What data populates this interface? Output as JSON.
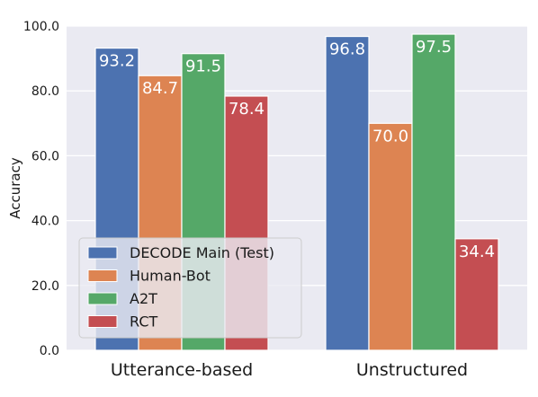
{
  "chart_data": {
    "type": "bar",
    "categories": [
      "Utterance-based",
      "Unstructured"
    ],
    "series": [
      {
        "name": "DECODE Main (Test)",
        "values": [
          93.2,
          96.8
        ],
        "color": "#4c72b0"
      },
      {
        "name": "Human-Bot",
        "values": [
          84.7,
          70.0
        ],
        "color": "#dd8452"
      },
      {
        "name": "A2T",
        "values": [
          91.5,
          97.5
        ],
        "color": "#55a868"
      },
      {
        "name": "RCT",
        "values": [
          78.4,
          34.4
        ],
        "color": "#c44e52"
      }
    ],
    "value_labels": [
      [
        "93.2",
        "96.8"
      ],
      [
        "84.7",
        "70.0"
      ],
      [
        "91.5",
        "97.5"
      ],
      [
        "78.4",
        "34.4"
      ]
    ],
    "yticks": [
      0,
      20,
      40,
      60,
      80,
      100
    ],
    "ytick_labels": [
      "0.0",
      "20.0",
      "40.0",
      "60.0",
      "80.0",
      "100.0"
    ],
    "ylabel": "Accuracy",
    "xlabel": "",
    "title": "",
    "ylim": [
      0,
      100
    ],
    "grid": true,
    "legend_position": "lower-left",
    "background": "#eaeaf2"
  }
}
